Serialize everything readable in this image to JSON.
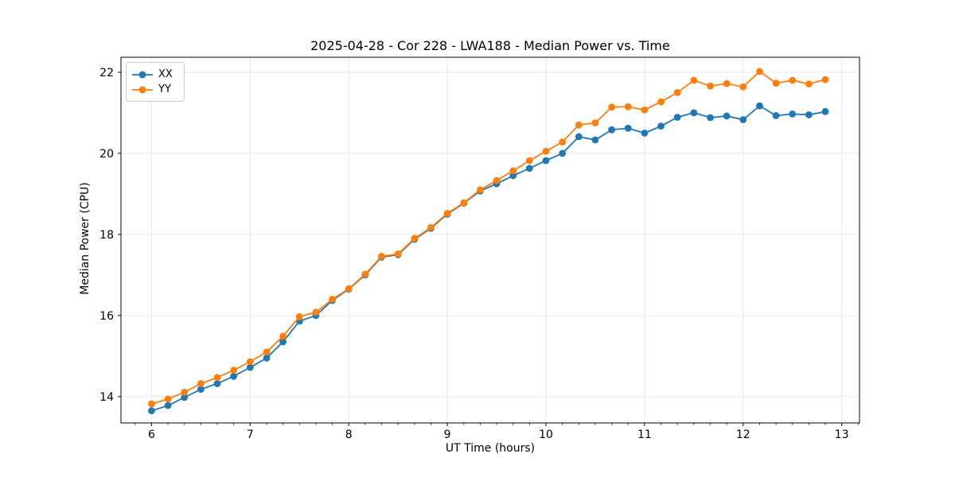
{
  "figure": {
    "title": "2025-04-28 - Cor 228 - LWA188 - Median Power vs. Time",
    "xlabel": "UT Time (hours)",
    "ylabel": "Median Power (CPU)"
  },
  "chart_data": {
    "type": "line",
    "title": "2025-04-28 - Cor 228 - LWA188 - Median Power vs. Time",
    "xlabel": "UT Time (hours)",
    "ylabel": "Median Power (CPU)",
    "xlim": [
      5.69,
      13.18
    ],
    "ylim": [
      13.35,
      22.37
    ],
    "xticks": [
      6,
      7,
      8,
      9,
      10,
      11,
      12,
      13
    ],
    "yticks": [
      14,
      16,
      18,
      20,
      22
    ],
    "minor_xtick_step": 0.16667,
    "grid": true,
    "grid_color": "#e6e6e6",
    "legend_position": "upper left",
    "marker": "circle",
    "x": [
      6.0,
      6.167,
      6.333,
      6.5,
      6.667,
      6.833,
      7.0,
      7.167,
      7.333,
      7.5,
      7.667,
      7.833,
      8.0,
      8.167,
      8.333,
      8.5,
      8.667,
      8.833,
      9.0,
      9.167,
      9.333,
      9.5,
      9.667,
      9.833,
      10.0,
      10.167,
      10.333,
      10.5,
      10.667,
      10.833,
      11.0,
      11.167,
      11.333,
      11.5,
      11.667,
      11.833,
      12.0,
      12.167,
      12.333,
      12.5,
      12.667,
      12.833
    ],
    "series": [
      {
        "name": "XX",
        "color": "#1f77b4",
        "values": [
          13.65,
          13.78,
          13.98,
          14.18,
          14.32,
          14.5,
          14.72,
          14.95,
          15.35,
          15.86,
          16.0,
          16.37,
          16.65,
          17.0,
          17.44,
          17.5,
          17.88,
          18.15,
          18.5,
          18.77,
          19.07,
          19.25,
          19.45,
          19.63,
          19.82,
          20.0,
          20.41,
          20.33,
          20.58,
          20.62,
          20.5,
          20.67,
          20.89,
          21.0,
          20.88,
          20.92,
          20.83,
          21.17,
          20.93,
          20.97,
          20.95,
          21.03
        ]
      },
      {
        "name": "YY",
        "color": "#ff7f0e",
        "values": [
          13.82,
          13.94,
          14.11,
          14.32,
          14.47,
          14.65,
          14.86,
          15.1,
          15.49,
          15.97,
          16.08,
          16.4,
          16.66,
          17.02,
          17.46,
          17.52,
          17.9,
          18.17,
          18.52,
          18.78,
          19.1,
          19.33,
          19.57,
          19.82,
          20.05,
          20.28,
          20.7,
          20.75,
          21.14,
          21.15,
          21.07,
          21.27,
          21.5,
          21.8,
          21.66,
          21.72,
          21.64,
          22.02,
          21.73,
          21.8,
          21.71,
          21.82
        ]
      }
    ]
  }
}
